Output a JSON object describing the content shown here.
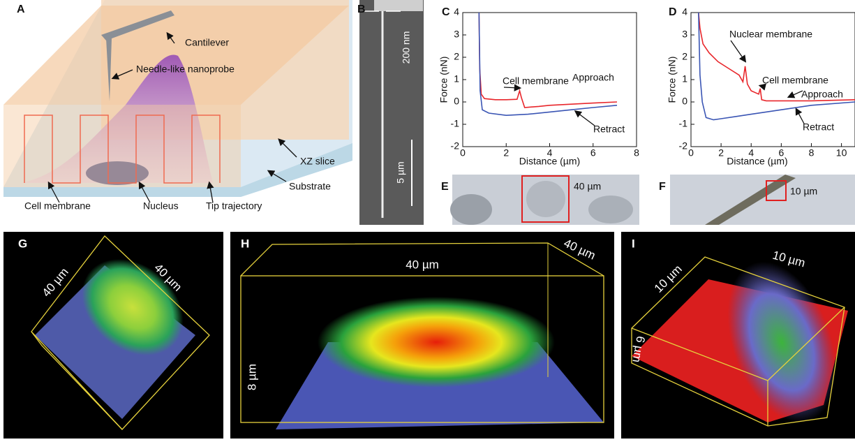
{
  "panel_labels": [
    "A",
    "B",
    "C",
    "D",
    "E",
    "F",
    "G",
    "H",
    "I"
  ],
  "schematic": {
    "labels": [
      "Cantilever",
      "Needle-like nanoprobe",
      "XZ slice",
      "Substrate",
      "Cell membrane",
      "Nucleus",
      "Tip trajectory"
    ]
  },
  "sem": {
    "scale_labels": [
      "200 nm",
      "5 µm"
    ]
  },
  "chart_data": [
    {
      "type": "line",
      "xlabel": "Distance (µm)",
      "ylabel": "Force (nN)",
      "xlim": [
        0,
        8
      ],
      "xticks": [
        0,
        2,
        4,
        6,
        8
      ],
      "ylim": [
        -2,
        4
      ],
      "yticks": [
        -2,
        -1,
        0,
        1,
        2,
        3,
        4
      ],
      "annotations": [
        "Cell membrane",
        "Approach",
        "Retract"
      ],
      "series": [
        {
          "name": "Approach",
          "color": "#e8262b",
          "x": [
            0.75,
            0.78,
            0.85,
            1,
            1.5,
            2,
            2.5,
            2.62,
            2.7,
            2.85,
            3.5,
            4,
            5,
            6,
            7.1
          ],
          "values": [
            4,
            1.5,
            0.35,
            0.15,
            0.1,
            0.1,
            0.12,
            0.5,
            0.2,
            -0.25,
            -0.2,
            -0.15,
            -0.1,
            -0.05,
            0
          ]
        },
        {
          "name": "Retract",
          "color": "#3a55b4",
          "x": [
            0.75,
            0.8,
            0.9,
            1.2,
            2,
            3,
            4,
            5,
            6,
            7.1
          ],
          "values": [
            4,
            0.5,
            -0.35,
            -0.5,
            -0.6,
            -0.55,
            -0.45,
            -0.35,
            -0.25,
            -0.15
          ]
        }
      ]
    },
    {
      "type": "line",
      "xlabel": "Distance (µm)",
      "ylabel": "Force (nN)",
      "xlim": [
        0,
        10.9
      ],
      "xticks": [
        0,
        2,
        4,
        6,
        8,
        10
      ],
      "ylim": [
        -2,
        4
      ],
      "yticks": [
        -2,
        -1,
        0,
        1,
        2,
        3,
        4
      ],
      "annotations": [
        "Nuclear membrane",
        "Cell membrane",
        "Approach",
        "Retract"
      ],
      "series": [
        {
          "name": "Approach",
          "color": "#e8262b",
          "x": [
            0.5,
            0.6,
            0.8,
            1.2,
            1.8,
            2.5,
            3.2,
            3.45,
            3.6,
            3.75,
            4,
            4.5,
            4.6,
            4.7,
            5,
            6,
            8,
            10.9
          ],
          "values": [
            4,
            3.3,
            2.6,
            2.2,
            1.8,
            1.5,
            1.2,
            0.9,
            1.6,
            0.8,
            0.5,
            0.35,
            0.6,
            0.1,
            0.05,
            0.05,
            0.05,
            0.1
          ]
        },
        {
          "name": "Retract",
          "color": "#3a55b4",
          "x": [
            0.5,
            0.6,
            0.75,
            1,
            1.5,
            2,
            3,
            4,
            6,
            8,
            10.9
          ],
          "values": [
            4,
            1.2,
            0,
            -0.7,
            -0.8,
            -0.75,
            -0.65,
            -0.55,
            -0.35,
            -0.15,
            0
          ]
        }
      ]
    }
  ],
  "micrographs": [
    {
      "scale_label": "40 µm"
    },
    {
      "scale_label": "10 µm"
    }
  ],
  "renders": [
    {
      "labels": [
        "40 µm",
        "40 µm"
      ]
    },
    {
      "labels": [
        "40 µm",
        "40 µm",
        "8 µm"
      ]
    },
    {
      "labels": [
        "10 µm",
        "10 µm",
        "6 µm"
      ]
    }
  ]
}
